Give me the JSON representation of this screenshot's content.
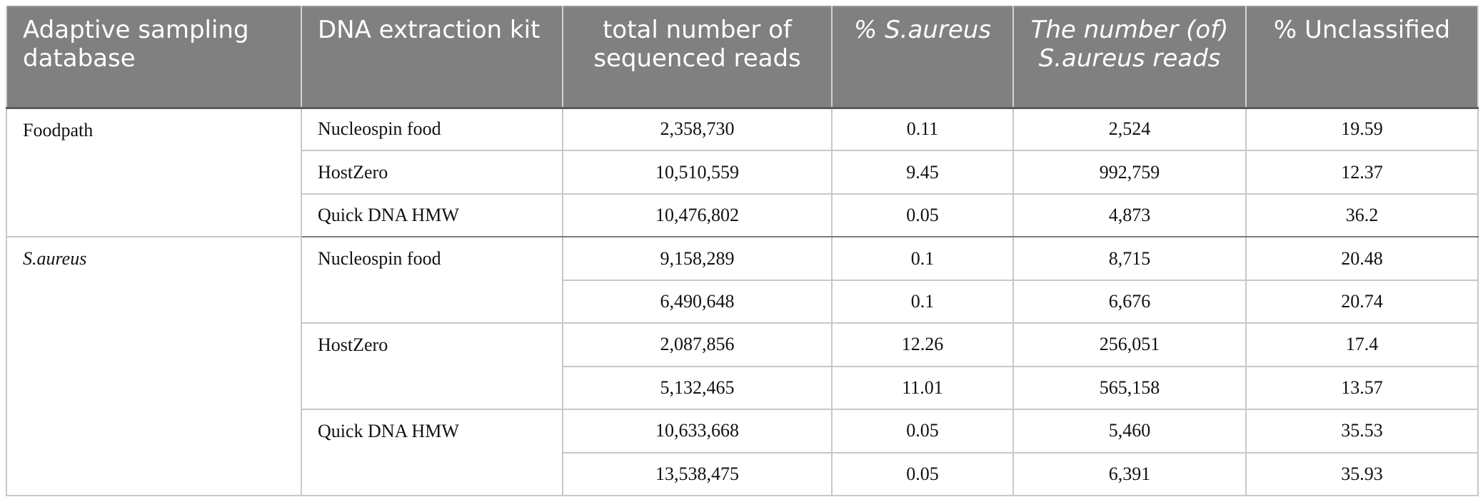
{
  "headers": [
    "Adaptive sampling database",
    "DNA extraction kit",
    "total number of sequenced reads",
    "% S.aureus",
    "The number (of) S.aureus reads",
    "% Unclassified"
  ],
  "groups": [
    {
      "database": "Foodpath",
      "kits": [
        {
          "name": "Nucleospin food",
          "rows": [
            {
              "total": "2,358,730",
              "pct": "0.11",
              "reads": "2,524",
              "unclassified": "19.59"
            }
          ]
        },
        {
          "name": "HostZero",
          "rows": [
            {
              "total": "10,510,559",
              "pct": "9.45",
              "reads": "992,759",
              "unclassified": "12.37"
            }
          ]
        },
        {
          "name": "Quick DNA HMW",
          "rows": [
            {
              "total": "10,476,802",
              "pct": "0.05",
              "reads": "4,873",
              "unclassified": "36.2"
            }
          ]
        }
      ]
    },
    {
      "database": "S.aureus",
      "kits": [
        {
          "name": "Nucleospin food",
          "rows": [
            {
              "total": "9,158,289",
              "pct": "0.1",
              "reads": "8,715",
              "unclassified": "20.48"
            },
            {
              "total": "6,490,648",
              "pct": "0.1",
              "reads": "6,676",
              "unclassified": "20.74"
            }
          ]
        },
        {
          "name": "HostZero",
          "rows": [
            {
              "total": "2,087,856",
              "pct": "12.26",
              "reads": "256,051",
              "unclassified": "17.4"
            },
            {
              "total": "5,132,465",
              "pct": "11.01",
              "reads": "565,158",
              "unclassified": "13.57"
            }
          ]
        },
        {
          "name": "Quick DNA HMW",
          "rows": [
            {
              "total": "10,633,668",
              "pct": "0.05",
              "reads": "5,460",
              "unclassified": "35.53"
            },
            {
              "total": "13,538,475",
              "pct": "0.05",
              "reads": "6,391",
              "unclassified": "35.93"
            }
          ]
        }
      ]
    }
  ]
}
